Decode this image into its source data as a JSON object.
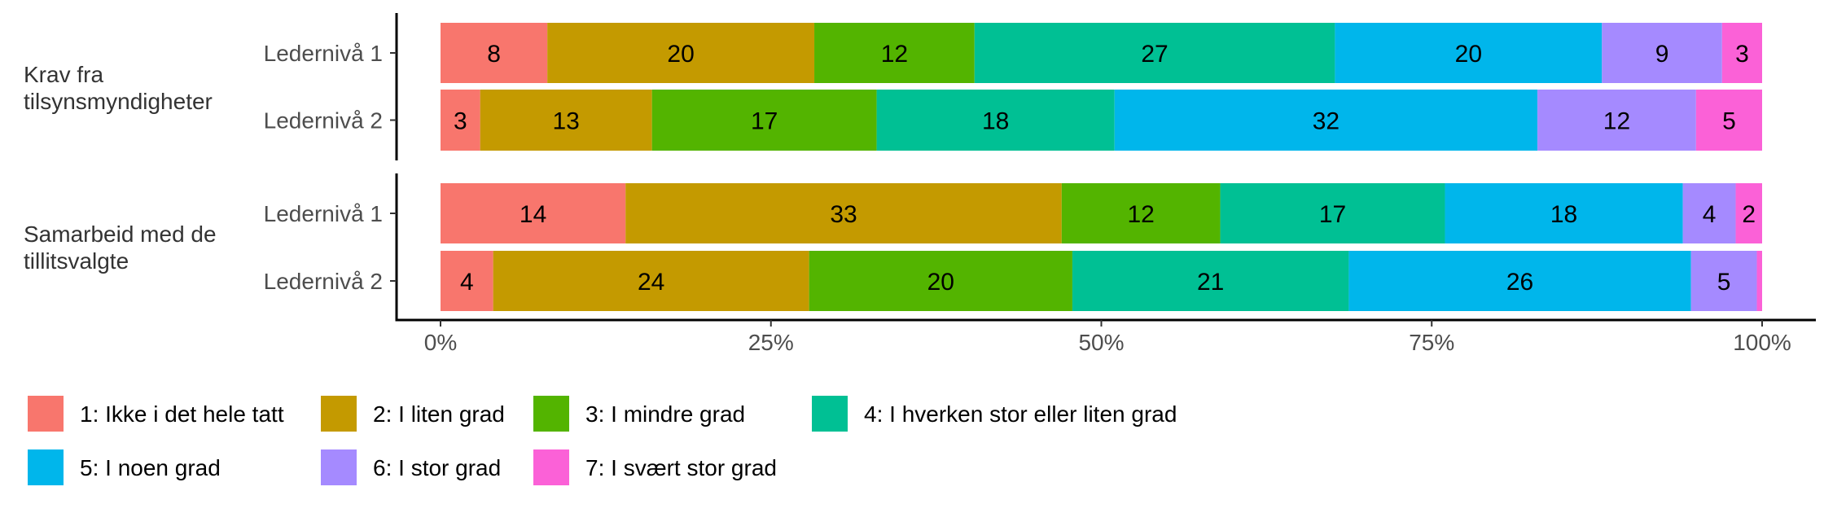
{
  "chart_data": {
    "type": "bar",
    "orientation": "horizontal",
    "stacked": "percent",
    "xlim": [
      0,
      100
    ],
    "x_ticks": [
      "0%",
      "25%",
      "50%",
      "75%",
      "100%"
    ],
    "x_tick_values": [
      0,
      25,
      50,
      75,
      100
    ],
    "legend_position": "bottom",
    "legend": [
      {
        "label": "1: Ikke i det hele tatt",
        "color": "#F8766D"
      },
      {
        "label": "2: I liten grad",
        "color": "#C49A00"
      },
      {
        "label": "3: I mindre grad",
        "color": "#53B400"
      },
      {
        "label": "4: I hverken stor eller liten grad",
        "color": "#00C094"
      },
      {
        "label": "5: I noen grad",
        "color": "#00B6EB"
      },
      {
        "label": "6: I stor grad",
        "color": "#A58AFF"
      },
      {
        "label": "7: I svært stor grad",
        "color": "#FB61D7"
      }
    ],
    "facets": [
      {
        "title_lines": [
          "Krav fra",
          "tilsynsmyndigheter"
        ],
        "rows": [
          {
            "label": "Ledernivå 1",
            "values": [
              8,
              20,
              12,
              27,
              20,
              9,
              3
            ]
          },
          {
            "label": "Ledernivå 2",
            "values": [
              3,
              13,
              17,
              18,
              32,
              12,
              5
            ]
          }
        ]
      },
      {
        "title_lines": [
          "Samarbeid med de",
          "tillitsvalgte"
        ],
        "rows": [
          {
            "label": "Ledernivå 1",
            "values": [
              14,
              33,
              12,
              17,
              18,
              4,
              2
            ]
          },
          {
            "label": "Ledernivå 2",
            "values": [
              4,
              24,
              20,
              21,
              26,
              5,
              0.4
            ]
          }
        ]
      }
    ]
  }
}
